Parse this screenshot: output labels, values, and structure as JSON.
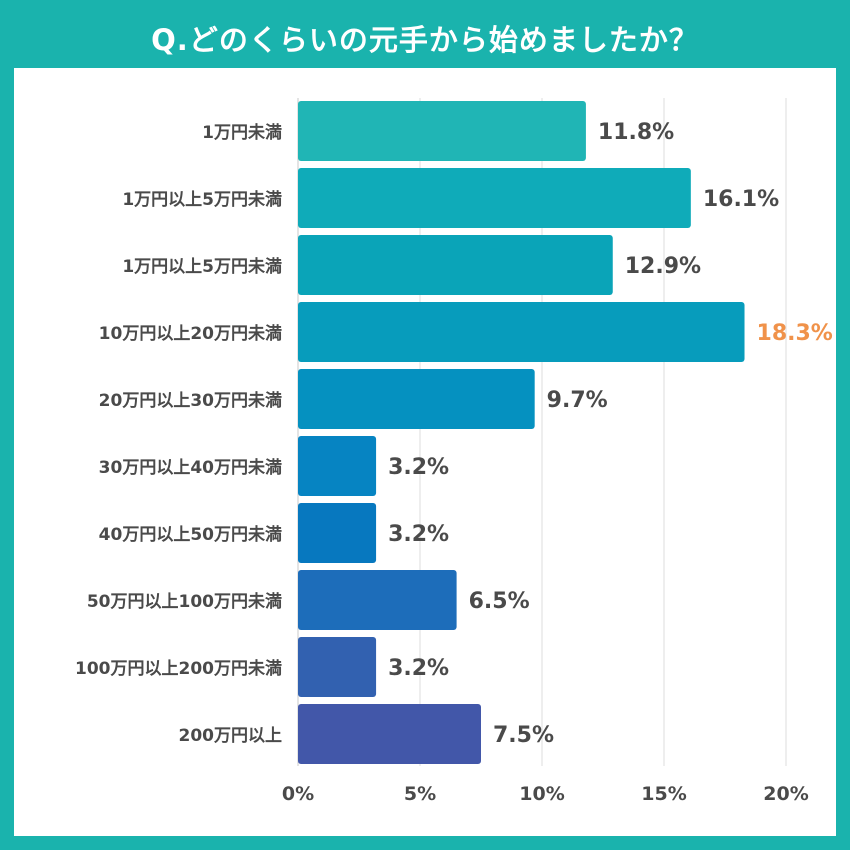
{
  "title": "Q.どのくらいの元手から始めましたか？",
  "colors": {
    "background": "#1ab3ad",
    "panel": "#ffffff",
    "highlight_label": "#f0924a",
    "label_text": "#4a4a4a",
    "grid": "#dcdcdc"
  },
  "chart_data": {
    "type": "bar",
    "orientation": "horizontal",
    "categories": [
      "1万円未満",
      "1万円以上5万円未満",
      "1万円以上5万円未満",
      "10万円以上20万円未満",
      "20万円以上30万円未満",
      "30万円以上40万円未満",
      "40万円以上50万円未満",
      "50万円以上100万円未満",
      "100万円以上200万円未満",
      "200万円以上"
    ],
    "values": [
      11.8,
      16.1,
      12.9,
      18.3,
      9.7,
      3.2,
      3.2,
      6.5,
      3.2,
      7.5
    ],
    "value_labels": [
      "11.8%",
      "16.1%",
      "12.9%",
      "18.3%",
      "9.7%",
      "3.2%",
      "3.2%",
      "6.5%",
      "3.2%",
      "7.5%"
    ],
    "bar_colors": [
      "#20b5b5",
      "#0fabb9",
      "#0aa4b8",
      "#079cbc",
      "#0591c0",
      "#0684c2",
      "#0778bf",
      "#1d6dba",
      "#3261b0",
      "#4257a9"
    ],
    "highlight_index": 3,
    "xlim": [
      0,
      20
    ],
    "xticks": [
      0,
      5,
      10,
      15,
      20
    ],
    "xtick_labels": [
      "0%",
      "5%",
      "10%",
      "15%",
      "20%"
    ],
    "grid": true,
    "legend": "none"
  }
}
